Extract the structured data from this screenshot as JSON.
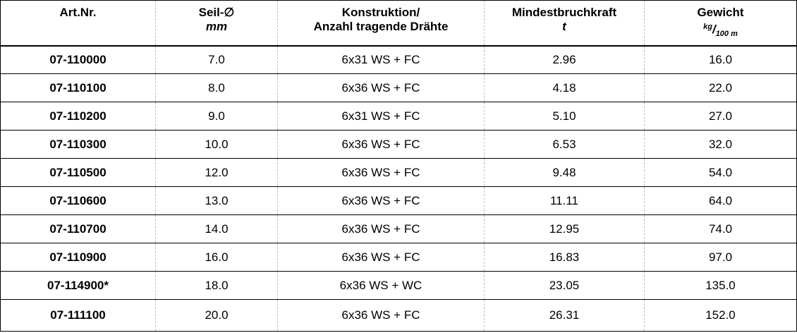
{
  "table": {
    "headers": {
      "art_nr": "Art.Nr.",
      "seil_label": "Seil-∅",
      "seil_unit": "mm",
      "konstruktion_line1": "Konstruktion/",
      "konstruktion_line2": "Anzahl tragende Drähte",
      "bruchkraft_label": "Mindestbruchkraft",
      "bruchkraft_unit": "t",
      "gewicht_label": "Gewicht",
      "gewicht_unit_num": "kg",
      "gewicht_unit_slash": "/",
      "gewicht_unit_den": "100 m"
    },
    "rows": [
      {
        "art": "07-110000",
        "dia": "7.0",
        "kon": "6x31 WS + FC",
        "kraft": "2.96",
        "gew": "16.0"
      },
      {
        "art": "07-110100",
        "dia": "8.0",
        "kon": "6x36 WS + FC",
        "kraft": "4.18",
        "gew": "22.0"
      },
      {
        "art": "07-110200",
        "dia": "9.0",
        "kon": "6x31 WS + FC",
        "kraft": "5.10",
        "gew": "27.0"
      },
      {
        "art": "07-110300",
        "dia": "10.0",
        "kon": "6x36 WS + FC",
        "kraft": "6.53",
        "gew": "32.0"
      },
      {
        "art": "07-110500",
        "dia": "12.0",
        "kon": "6x36 WS + FC",
        "kraft": "9.48",
        "gew": "54.0"
      },
      {
        "art": "07-110600",
        "dia": "13.0",
        "kon": "6x36 WS + FC",
        "kraft": "11.11",
        "gew": "64.0"
      },
      {
        "art": "07-110700",
        "dia": "14.0",
        "kon": "6x36 WS + FC",
        "kraft": "12.95",
        "gew": "74.0"
      },
      {
        "art": "07-110900",
        "dia": "16.0",
        "kon": "6x36 WS + FC",
        "kraft": "16.83",
        "gew": "97.0"
      },
      {
        "art": "07-114900*",
        "dia": "18.0",
        "kon": "6x36 WS + WC",
        "kraft": "23.05",
        "gew": "135.0"
      },
      {
        "art": "07-111100",
        "dia": "20.0",
        "kon": "6x36 WS + FC",
        "kraft": "26.31",
        "gew": "152.0"
      }
    ]
  }
}
